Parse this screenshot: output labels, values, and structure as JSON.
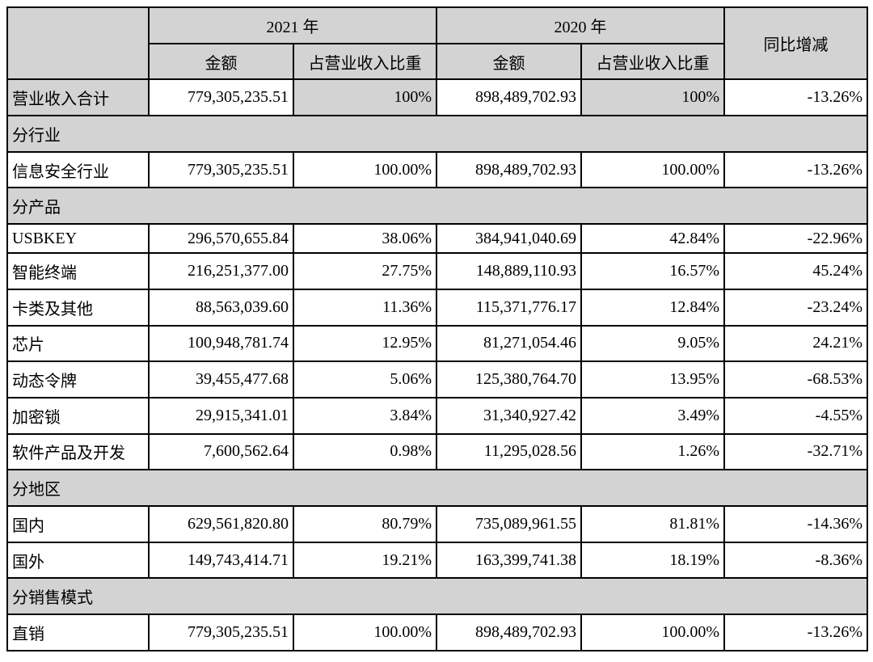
{
  "table": {
    "header": {
      "corner": "",
      "year_2021": "2021 年",
      "year_2020": "2020 年",
      "amount_2021": "金额",
      "ratio_2021": "占营业收入比重",
      "amount_2020": "金额",
      "ratio_2020": "占营业收入比重",
      "yoy": "同比增减"
    },
    "rows": [
      {
        "type": "data",
        "label": "营业收入合计",
        "a2021": "779,305,235.51",
        "r2021": "100%",
        "a2020": "898,489,702.93",
        "r2020": "100%",
        "yoy": "-13.26%"
      },
      {
        "type": "section",
        "label": "分行业"
      },
      {
        "type": "data",
        "label": "信息安全行业",
        "a2021": "779,305,235.51",
        "r2021": "100.00%",
        "a2020": "898,489,702.93",
        "r2020": "100.00%",
        "yoy": "-13.26%"
      },
      {
        "type": "section",
        "label": "分产品"
      },
      {
        "type": "data",
        "label": "USBKEY",
        "a2021": "296,570,655.84",
        "r2021": "38.06%",
        "a2020": "384,941,040.69",
        "r2020": "42.84%",
        "yoy": "-22.96%"
      },
      {
        "type": "data",
        "label": "智能终端",
        "a2021": "216,251,377.00",
        "r2021": "27.75%",
        "a2020": "148,889,110.93",
        "r2020": "16.57%",
        "yoy": "45.24%"
      },
      {
        "type": "data",
        "label": "卡类及其他",
        "a2021": "88,563,039.60",
        "r2021": "11.36%",
        "a2020": "115,371,776.17",
        "r2020": "12.84%",
        "yoy": "-23.24%"
      },
      {
        "type": "data",
        "label": "芯片",
        "a2021": "100,948,781.74",
        "r2021": "12.95%",
        "a2020": "81,271,054.46",
        "r2020": "9.05%",
        "yoy": "24.21%"
      },
      {
        "type": "data",
        "label": "动态令牌",
        "a2021": "39,455,477.68",
        "r2021": "5.06%",
        "a2020": "125,380,764.70",
        "r2020": "13.95%",
        "yoy": "-68.53%"
      },
      {
        "type": "data",
        "label": "加密锁",
        "a2021": "29,915,341.01",
        "r2021": "3.84%",
        "a2020": "31,340,927.42",
        "r2020": "3.49%",
        "yoy": "-4.55%"
      },
      {
        "type": "data",
        "label": "软件产品及开发",
        "a2021": "7,600,562.64",
        "r2021": "0.98%",
        "a2020": "11,295,028.56",
        "r2020": "1.26%",
        "yoy": "-32.71%"
      },
      {
        "type": "section",
        "label": "分地区"
      },
      {
        "type": "data",
        "label": "国内",
        "a2021": "629,561,820.80",
        "r2021": "80.79%",
        "a2020": "735,089,961.55",
        "r2020": "81.81%",
        "yoy": "-14.36%"
      },
      {
        "type": "data",
        "label": "国外",
        "a2021": "149,743,414.71",
        "r2021": "19.21%",
        "a2020": "163,399,741.38",
        "r2020": "18.19%",
        "yoy": "-8.36%"
      },
      {
        "type": "section",
        "label": "分销售模式"
      },
      {
        "type": "data",
        "label": "直销",
        "a2021": "779,305,235.51",
        "r2021": "100.00%",
        "a2020": "898,489,702.93",
        "r2020": "100.00%",
        "yoy": "-13.26%"
      }
    ]
  },
  "colors": {
    "header_bg": "#d3d3d3",
    "border": "#000000",
    "text": "#000000",
    "cell_bg": "#ffffff"
  }
}
